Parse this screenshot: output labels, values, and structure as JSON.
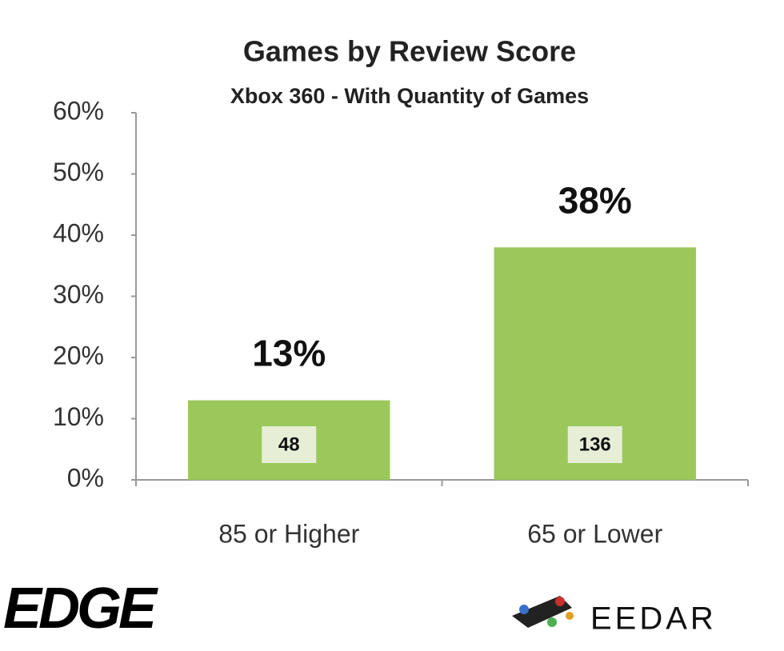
{
  "chart_data": {
    "type": "bar",
    "title": "Games by Review Score",
    "subtitle": "Xbox 360 - With Quantity of Games",
    "categories": [
      "85 or Higher",
      "65 or Lower"
    ],
    "values": [
      13,
      38
    ],
    "value_labels": [
      "13%",
      "38%"
    ],
    "quantities": [
      48,
      136
    ],
    "color": "#9bc85a",
    "ylim": [
      0,
      60
    ],
    "yticks": [
      {
        "value": 0,
        "label": "0%"
      },
      {
        "value": 10,
        "label": "10%"
      },
      {
        "value": 20,
        "label": "20%"
      },
      {
        "value": 30,
        "label": "30%"
      },
      {
        "value": 40,
        "label": "40%"
      },
      {
        "value": 50,
        "label": "50%"
      },
      {
        "value": 60,
        "label": "60%"
      }
    ],
    "grid": false
  },
  "logos": [
    "EDGE",
    "EEDAR"
  ]
}
